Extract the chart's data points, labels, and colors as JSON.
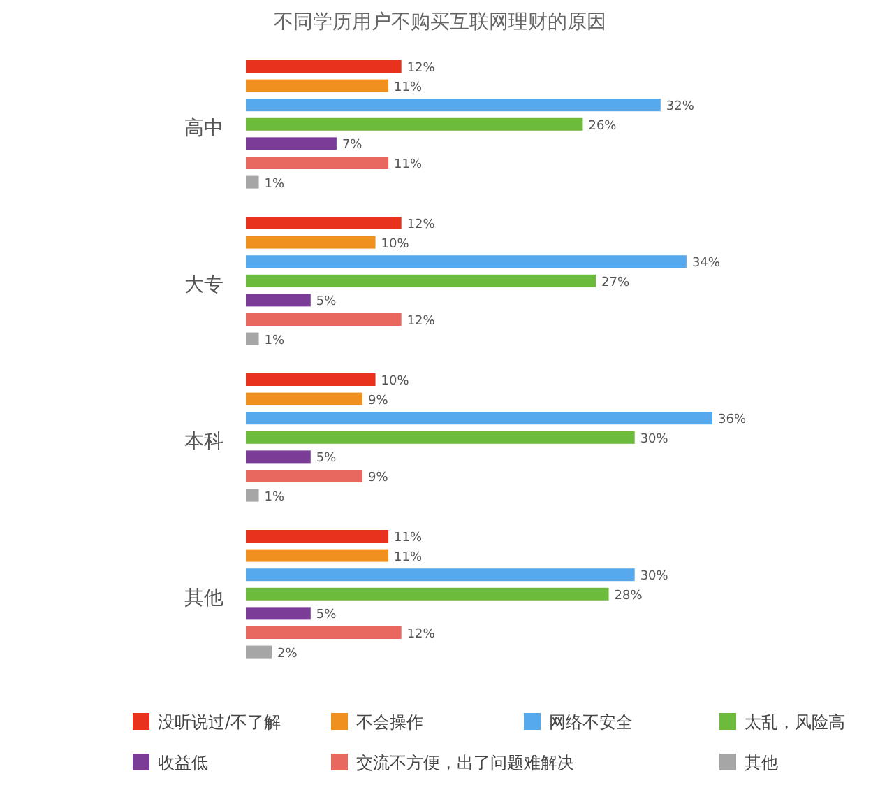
{
  "chart_data": {
    "type": "bar",
    "orientation": "horizontal",
    "title": "不同学历用户不购买互联网理财的原因",
    "categories": [
      "高中",
      "大专",
      "本科",
      "其他"
    ],
    "legend": "bottom",
    "series": [
      {
        "name": "没听说过/不了解",
        "color": "#e8321e",
        "values": [
          12,
          12,
          10,
          11
        ],
        "value_labels": [
          "12%",
          "12%",
          "10%",
          "11%"
        ]
      },
      {
        "name": "不会操作",
        "color": "#f0901e",
        "values": [
          11,
          10,
          9,
          11
        ],
        "value_labels": [
          "11%",
          "10%",
          "9%",
          "11%"
        ]
      },
      {
        "name": "网络不安全",
        "color": "#55a9ec",
        "values": [
          32,
          34,
          36,
          30
        ],
        "value_labels": [
          "32%",
          "34%",
          "36%",
          "30%"
        ]
      },
      {
        "name": "太乱，风险高",
        "color": "#6cbb3c",
        "values": [
          26,
          27,
          30,
          28
        ],
        "value_labels": [
          "26%",
          "27%",
          "30%",
          "28%"
        ]
      },
      {
        "name": "收益低",
        "color": "#7a3c96",
        "values": [
          7,
          5,
          5,
          5
        ],
        "value_labels": [
          "7%",
          "5%",
          "5%",
          "5%"
        ]
      },
      {
        "name": "交流不方便，出了问题难解决",
        "color": "#e8675e",
        "values": [
          11,
          12,
          9,
          12
        ],
        "value_labels": [
          "11%",
          "12%",
          "9%",
          "12%"
        ]
      },
      {
        "name": "其他",
        "color": "#a6a6a6",
        "values": [
          1,
          1,
          1,
          2
        ],
        "value_labels": [
          "1%",
          "1%",
          "1%",
          "2%"
        ]
      }
    ]
  }
}
